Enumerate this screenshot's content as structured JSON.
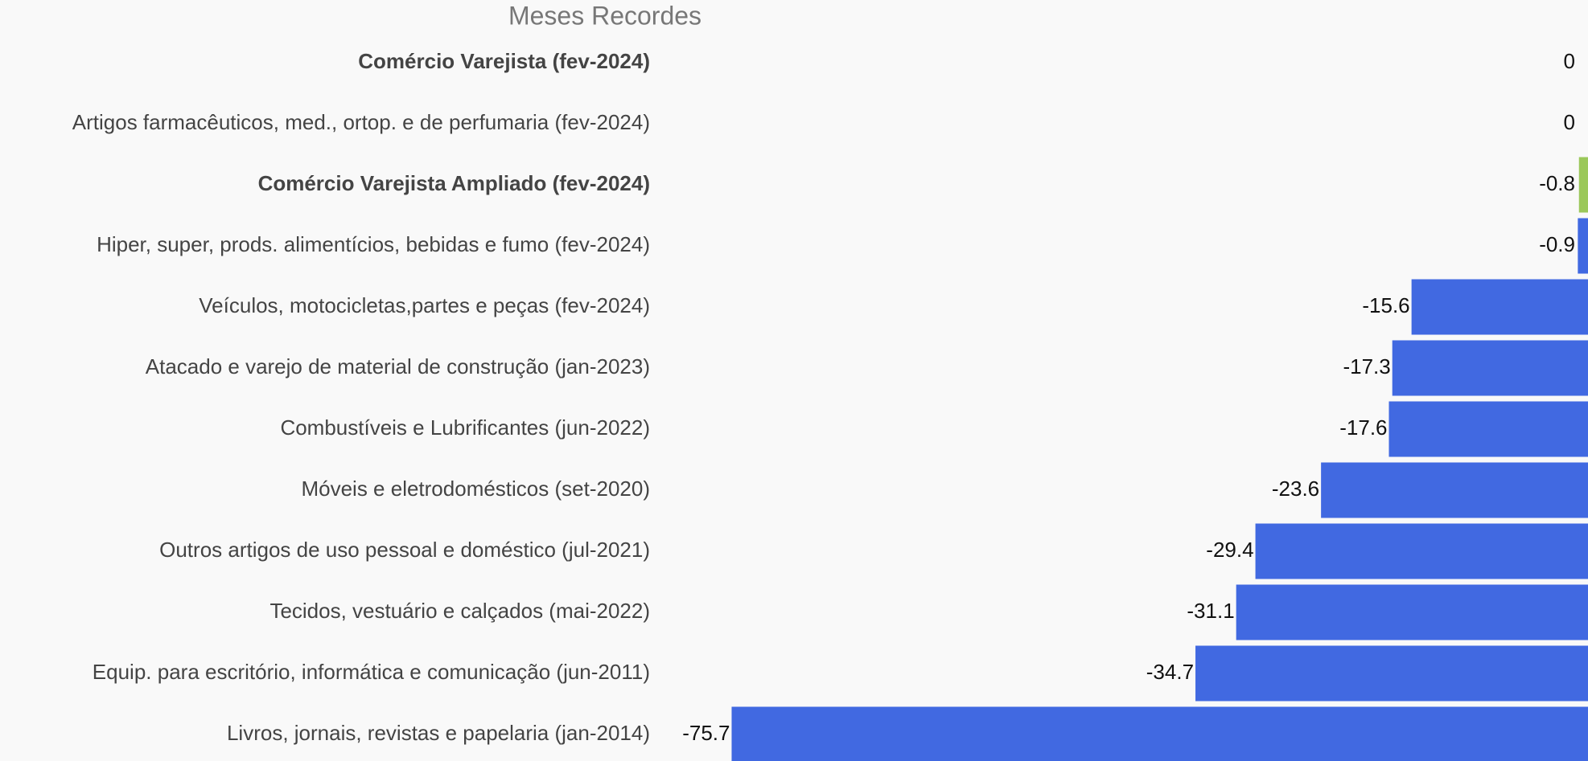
{
  "chart_data": {
    "type": "barh",
    "title": "Meses Recordes",
    "categories": [
      "Comércio Varejista (fev-2024)",
      "Artigos farmacêuticos, med., ortop. e de perfumaria (fev-2024)",
      "Comércio Varejista Ampliado (fev-2024)",
      "Hiper, super, prods.  alimentícios, bebidas e fumo (fev-2024)",
      "Veículos, motocicletas,partes e peças (fev-2024)",
      "Atacado e varejo de material de construção (jan-2023)",
      "Combustíveis e Lubrificantes (jun-2022)",
      "Móveis e eletrodomésticos (set-2020)",
      "Outros artigos de uso pessoal e doméstico (jul-2021)",
      "Tecidos, vestuário e calçados (mai-2022)",
      "Equip. para escritório, informática e comunicação (jun-2011)",
      "Livros, jornais, revistas e papelaria (jan-2014)"
    ],
    "values": [
      0,
      0,
      -0.8,
      -0.9,
      -15.6,
      -17.3,
      -17.6,
      -23.6,
      -29.4,
      -31.1,
      -34.7,
      -75.7
    ],
    "colors": [
      "#9bc85a",
      "#4169e1",
      "#9bc85a",
      "#4169e1",
      "#4169e1",
      "#4169e1",
      "#4169e1",
      "#4169e1",
      "#4169e1",
      "#4169e1",
      "#4169e1",
      "#4169e1"
    ],
    "bold_categories": [
      0,
      2
    ],
    "xlim": [
      -80,
      0
    ]
  }
}
